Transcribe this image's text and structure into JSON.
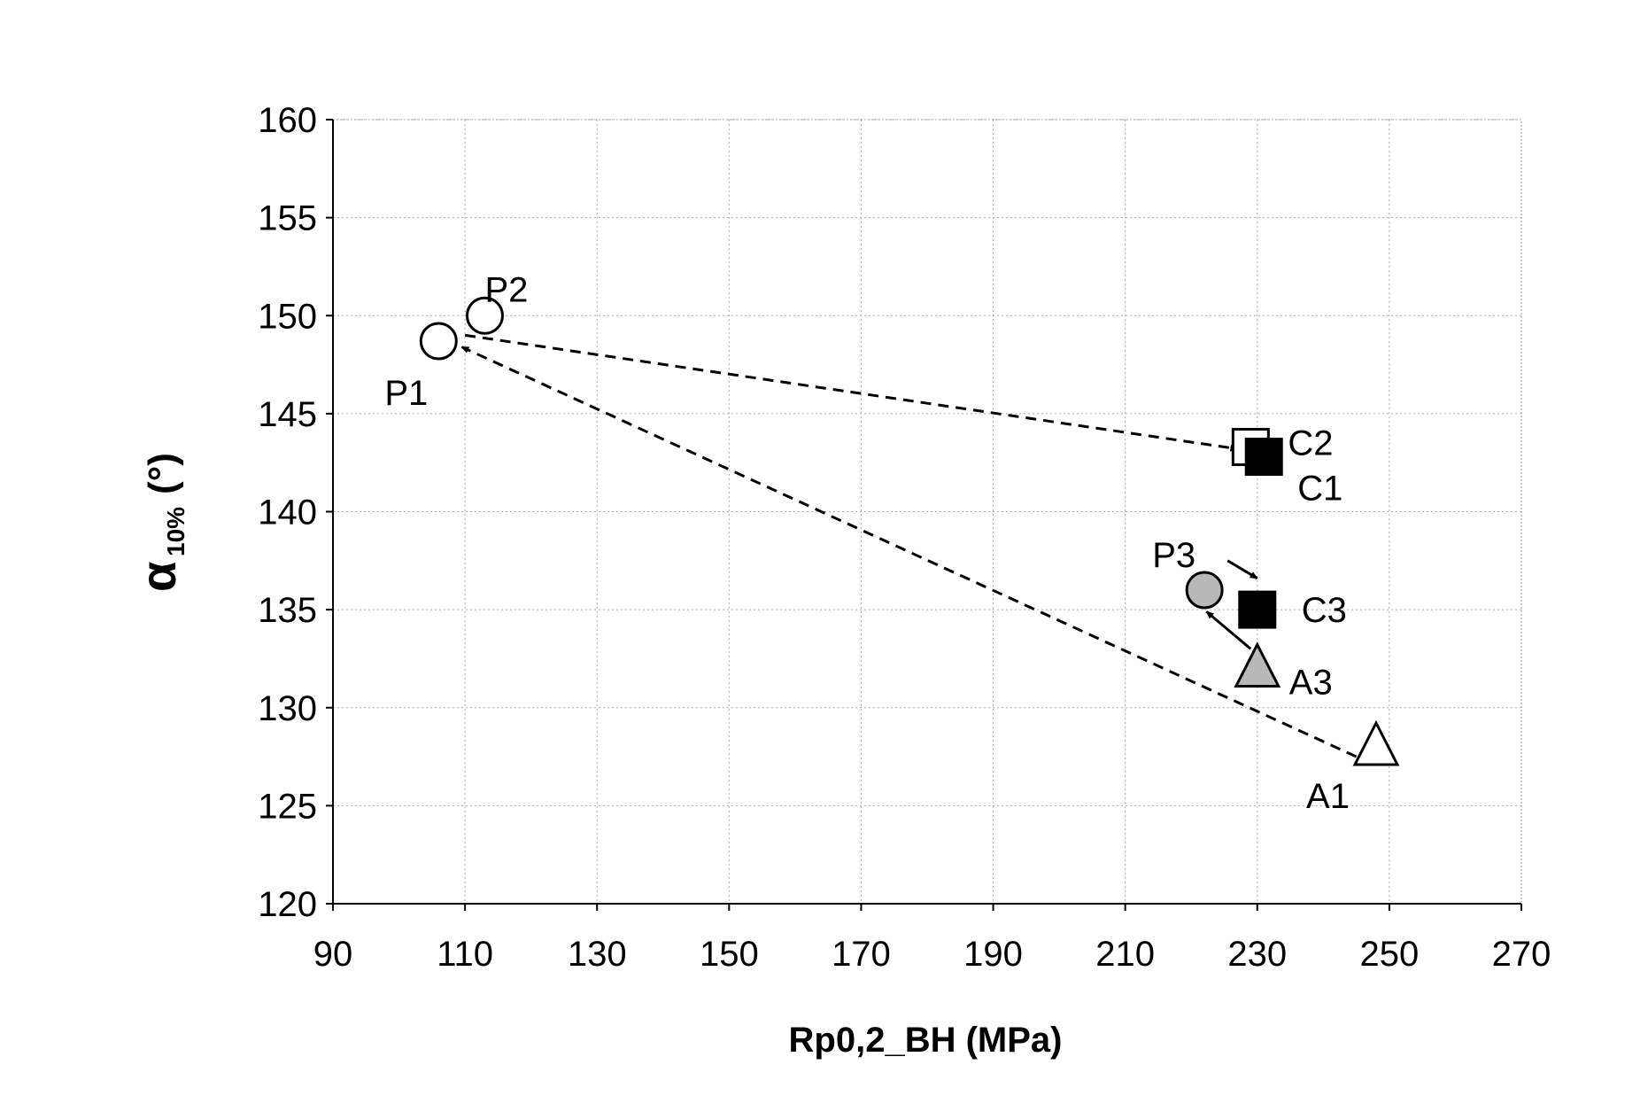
{
  "chart_data": {
    "type": "scatter",
    "title": "",
    "xlabel": "Rp0,2_BH (MPa)",
    "ylabel_main": "α",
    "ylabel_sub": "10%",
    "ylabel_unit": "(°)",
    "xlim": [
      90,
      270
    ],
    "ylim": [
      120,
      160
    ],
    "xticks": [
      90,
      110,
      130,
      150,
      170,
      190,
      210,
      230,
      250,
      270
    ],
    "yticks": [
      120,
      125,
      130,
      135,
      140,
      145,
      150,
      155,
      160
    ],
    "grid": true,
    "points": [
      {
        "label": "P1",
        "x": 106,
        "y": 148.7,
        "marker": "circle",
        "fill": "#ffffff"
      },
      {
        "label": "P2",
        "x": 113,
        "y": 150,
        "marker": "circle",
        "fill": "#ffffff"
      },
      {
        "label": "C2",
        "x": 229,
        "y": 143.3,
        "marker": "square",
        "fill": "#ffffff"
      },
      {
        "label": "C1",
        "x": 231,
        "y": 142.8,
        "marker": "square",
        "fill": "#000000"
      },
      {
        "label": "P3",
        "x": 222,
        "y": 136,
        "marker": "circle",
        "fill": "#b8b8b8"
      },
      {
        "label": "C3",
        "x": 230,
        "y": 135,
        "marker": "square",
        "fill": "#000000"
      },
      {
        "label": "A3",
        "x": 230,
        "y": 132,
        "marker": "triangle",
        "fill": "#b8b8b8"
      },
      {
        "label": "A1",
        "x": 248,
        "y": 128,
        "marker": "triangle",
        "fill": "#ffffff"
      }
    ],
    "arrows": [
      {
        "from": [
          110,
          149
        ],
        "to": [
          227,
          143.2
        ],
        "style": "dashed"
      },
      {
        "from": [
          245,
          127.5
        ],
        "to": [
          109.5,
          148.4
        ],
        "style": "dashed"
      },
      {
        "from": [
          225.5,
          137.5
        ],
        "to": [
          230,
          136.6
        ],
        "style": "solid"
      },
      {
        "from": [
          229,
          133
        ],
        "to": [
          222.3,
          134.9
        ],
        "style": "solid"
      }
    ]
  }
}
